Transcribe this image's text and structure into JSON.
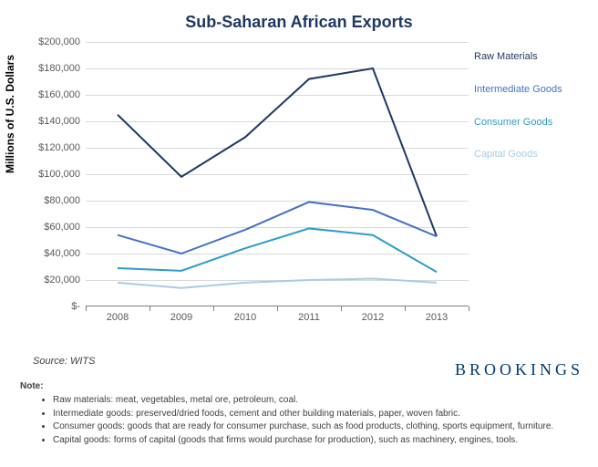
{
  "chart": {
    "type": "line",
    "title": "Sub-Saharan African Exports",
    "title_fontsize": 18,
    "title_color": "#1f3864",
    "y_axis_label": "Millions of U.S. Dollars",
    "y_label_fontsize": 12,
    "background_color": "#ffffff",
    "grid_color": "#d9d9d9",
    "axis_color": "#808080",
    "tick_label_color": "#595959",
    "tick_label_fontsize": 11,
    "x_categories": [
      "2008",
      "2009",
      "2010",
      "2011",
      "2012",
      "2013"
    ],
    "y_min": 0,
    "y_max": 200000,
    "y_tick_step": 20000,
    "y_tick_labels": [
      "$-",
      "$20,000",
      "$40,000",
      "$60,000",
      "$80,000",
      "$100,000",
      "$120,000",
      "$140,000",
      "$160,000",
      "$180,000",
      "$200,000"
    ],
    "line_width": 2,
    "series": [
      {
        "name": "Raw Materials",
        "color": "#1f3864",
        "values": [
          145000,
          98000,
          128000,
          172000,
          180000,
          53000
        ]
      },
      {
        "name": "Intermediate Goods",
        "color": "#4472c4",
        "values": [
          54000,
          40000,
          58000,
          79000,
          73000,
          53000
        ]
      },
      {
        "name": "Consumer Goods",
        "color": "#2e9cca",
        "values": [
          29000,
          27000,
          44000,
          59000,
          54000,
          26000
        ]
      },
      {
        "name": "Capital Goods",
        "color": "#a9cce3",
        "values": [
          18000,
          14000,
          18000,
          20000,
          21000,
          18000
        ]
      }
    ],
    "legend_fontsize": 11,
    "legend_color": "#595959"
  },
  "source_label": "Source: WITS",
  "source_fontsize": 11,
  "logo_text": "BROOKINGS",
  "logo_fontsize": 18,
  "logo_color": "#003a70",
  "note_heading": "Note:",
  "note_fontsize": 10,
  "notes": [
    "Raw materials: meat, vegetables, metal ore, petroleum, coal.",
    "Intermediate goods: preserved/dried foods, cement and other building materials, paper, woven fabric.",
    "Consumer goods: goods that are ready for consumer purchase, such as food products, clothing, sports equipment, furniture.",
    "Capital goods: forms of capital (goods that firms would purchase for production), such as machinery, engines, tools."
  ]
}
